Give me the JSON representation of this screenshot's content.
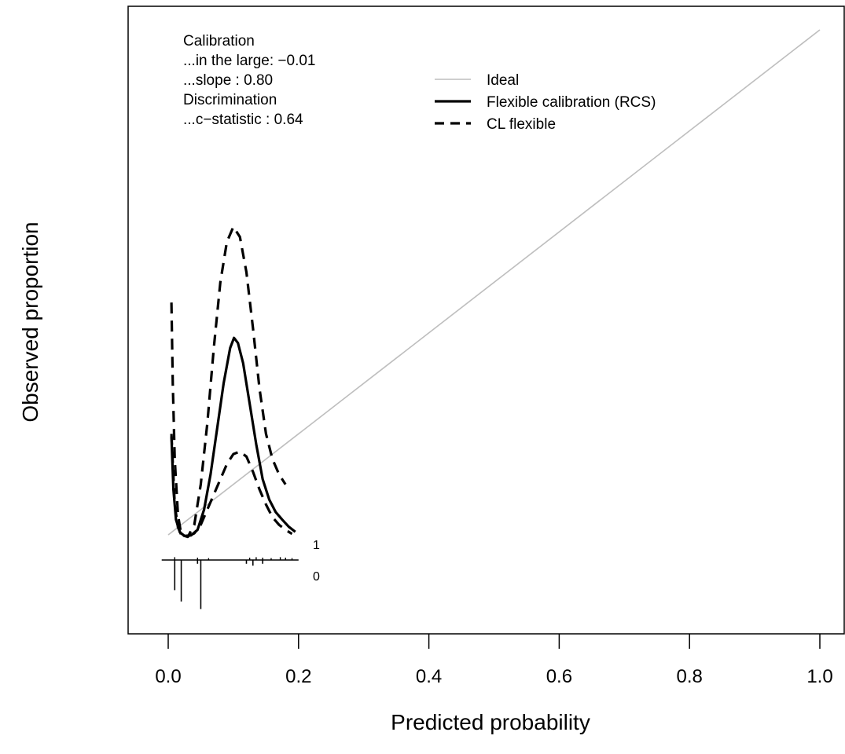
{
  "chart_data": {
    "type": "line",
    "title": "",
    "xlabel": "Predicted probability",
    "ylabel": "Observed proportion",
    "xlim": [
      0,
      1
    ],
    "ylim": [
      -0.14,
      1.0
    ],
    "x_ticks": [
      0.0,
      0.2,
      0.4,
      0.6,
      0.8,
      1.0
    ],
    "x_tick_labels": [
      "0.0",
      "0.2",
      "0.4",
      "0.6",
      "0.8",
      "1.0"
    ],
    "y_ticks_shown": false,
    "grid": false,
    "legend_position": "top-center",
    "legend": [
      {
        "label": "Ideal",
        "color": "#bebebe",
        "style": "solid-thin"
      },
      {
        "label": "Flexible calibration (RCS)",
        "color": "#000000",
        "style": "solid-thick"
      },
      {
        "label": "CL flexible",
        "color": "#000000",
        "style": "dashed"
      }
    ],
    "stats_lines": [
      "Calibration",
      "...in the large: −0.01",
      "...slope : 0.80",
      "Discrimination",
      "...c−statistic : 0.64"
    ],
    "series": [
      {
        "name": "Ideal",
        "color": "#bebebe",
        "style": "solid",
        "x": [
          0.0,
          1.0
        ],
        "y": [
          0.0,
          1.0
        ]
      },
      {
        "name": "Flexible calibration (RCS)",
        "color": "#000000",
        "style": "solid",
        "x": [
          0.005,
          0.008,
          0.012,
          0.018,
          0.025,
          0.035,
          0.045,
          0.055,
          0.065,
          0.075,
          0.085,
          0.095,
          0.101,
          0.107,
          0.115,
          0.125,
          0.135,
          0.145,
          0.155,
          0.165,
          0.175,
          0.185,
          0.195
        ],
        "y": [
          0.195,
          0.09,
          0.03,
          0.005,
          -0.002,
          -0.001,
          0.01,
          0.05,
          0.12,
          0.21,
          0.3,
          0.37,
          0.39,
          0.38,
          0.34,
          0.26,
          0.18,
          0.11,
          0.07,
          0.045,
          0.03,
          0.016,
          0.006
        ]
      },
      {
        "name": "CL flexible",
        "color": "#000000",
        "style": "dashed",
        "x": [
          0.005,
          0.007,
          0.01,
          0.015,
          0.02,
          0.03,
          0.04,
          0.05,
          0.06,
          0.07,
          0.08,
          0.09,
          0.1,
          0.11,
          0.12,
          0.13,
          0.14,
          0.15,
          0.16,
          0.17,
          0.18
        ],
        "y": [
          0.46,
          0.3,
          0.15,
          0.04,
          0.0,
          -0.004,
          0.02,
          0.1,
          0.22,
          0.37,
          0.5,
          0.58,
          0.61,
          0.59,
          0.52,
          0.41,
          0.29,
          0.2,
          0.15,
          0.12,
          0.1
        ]
      },
      {
        "name": "CL flexible lower",
        "color": "#000000",
        "style": "dashed",
        "x": [
          0.005,
          0.01,
          0.015,
          0.02,
          0.025,
          0.03,
          0.04,
          0.05,
          0.06,
          0.07,
          0.08,
          0.09,
          0.1,
          0.11,
          0.12,
          0.13,
          0.14,
          0.15,
          0.16,
          0.17,
          0.18,
          0.19
        ],
        "y": [
          0.2,
          0.06,
          0.015,
          0.0,
          -0.004,
          -0.003,
          0.003,
          0.02,
          0.05,
          0.08,
          0.11,
          0.14,
          0.16,
          0.165,
          0.155,
          0.125,
          0.09,
          0.06,
          0.035,
          0.02,
          0.01,
          0.002
        ]
      }
    ],
    "spike_axis_labels": [
      "1",
      "0"
    ],
    "spikes_event_1": [
      {
        "x": 0.01,
        "h": 0.6
      },
      {
        "x": 0.045,
        "h": 0.5
      },
      {
        "x": 0.062,
        "h": 0.4
      },
      {
        "x": 0.125,
        "h": 0.5
      },
      {
        "x": 0.135,
        "h": 0.6
      },
      {
        "x": 0.145,
        "h": 0.5
      },
      {
        "x": 0.158,
        "h": 0.4
      },
      {
        "x": 0.172,
        "h": 0.6
      },
      {
        "x": 0.18,
        "h": 0.5
      },
      {
        "x": 0.19,
        "h": 0.4
      }
    ],
    "spikes_event_0": [
      {
        "x": 0.01,
        "h": 1.6
      },
      {
        "x": 0.02,
        "h": 2.2
      },
      {
        "x": 0.05,
        "h": 2.6
      },
      {
        "x": 0.045,
        "h": 0.2
      },
      {
        "x": 0.12,
        "h": 0.2
      },
      {
        "x": 0.13,
        "h": 0.3
      },
      {
        "x": 0.145,
        "h": 0.2
      }
    ]
  }
}
